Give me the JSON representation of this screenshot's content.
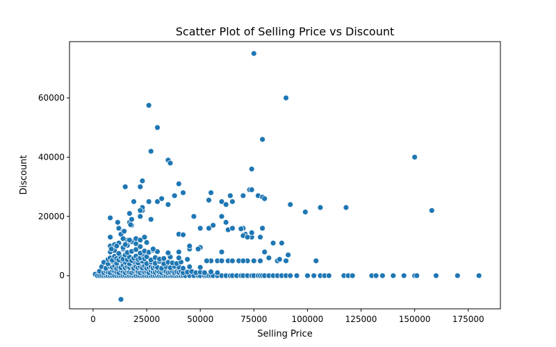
{
  "chart_data": {
    "type": "scatter",
    "title": "Scatter Plot of Selling Price vs Discount",
    "xlabel": "Selling Price",
    "ylabel": "Discount",
    "xlim": [
      -11000,
      190000
    ],
    "ylim": [
      -11200,
      79000
    ],
    "xticks": [
      0,
      25000,
      50000,
      75000,
      100000,
      125000,
      150000,
      175000
    ],
    "xtick_labels": [
      "0",
      "25000",
      "50000",
      "75000",
      "100000",
      "125000",
      "150000",
      "175000"
    ],
    "yticks": [
      0,
      20000,
      40000,
      60000
    ],
    "ytick_labels": [
      "0",
      "20000",
      "40000",
      "60000"
    ],
    "grid": false,
    "marker_color": "#1f77b4",
    "series": [
      {
        "x": [
          1000,
          2000,
          3000,
          4000,
          5000,
          6000,
          7000,
          8000,
          9000,
          10000,
          11000,
          12000,
          13000,
          14000,
          15000,
          16000,
          17000,
          18000,
          19000,
          20000,
          21000,
          22000,
          23000,
          24000,
          25000,
          26000,
          27000,
          28000,
          29000,
          30000,
          31000,
          32000,
          33000,
          34000,
          35000,
          36000,
          37000,
          38000,
          39000,
          40000,
          41000,
          42000,
          43000,
          45000,
          47000,
          49000,
          50000,
          52000,
          53000,
          54000,
          55000,
          56000,
          58000,
          60000,
          62000,
          64000,
          65000,
          67000,
          69000,
          70000,
          72000,
          74000,
          75000,
          77000,
          78000,
          79000,
          80000,
          82000,
          84000,
          86000,
          88000,
          90000,
          92000,
          95000,
          100000,
          103000,
          106000,
          108000,
          110000,
          117000,
          119000,
          121000,
          130000,
          132000,
          135000,
          140000,
          145000,
          150000,
          151000,
          160000,
          170000,
          180000,
          3000,
          5000,
          6000,
          7000,
          8000,
          9000,
          10000,
          11000,
          12000,
          13000,
          14000,
          15000,
          16000,
          17000,
          18000,
          19000,
          20000,
          21000,
          22000,
          23000,
          24000,
          25000,
          26000,
          27000,
          28000,
          29000,
          30000,
          31000,
          32000,
          33000,
          34000,
          35000,
          36000,
          37000,
          38000,
          39000,
          40000,
          41000,
          42000,
          44000,
          46000,
          48000,
          50000,
          52000,
          55000,
          58000,
          4000,
          6000,
          8000,
          9000,
          10000,
          11000,
          12000,
          13000,
          14000,
          15000,
          16000,
          17000,
          18000,
          19000,
          20000,
          21000,
          22000,
          23000,
          24000,
          25000,
          26000,
          27000,
          28000,
          29000,
          30000,
          32000,
          34000,
          36000,
          38000,
          40000,
          42000,
          45000,
          50000,
          5000,
          7000,
          9000,
          11000,
          13000,
          15000,
          17000,
          19000,
          21000,
          23000,
          25000,
          27000,
          29000,
          31000,
          33000,
          35000,
          37000,
          39000,
          41000,
          7000,
          8000,
          9000,
          10000,
          11000,
          12000,
          13000,
          14000,
          15000,
          16000,
          17000,
          18000,
          19000,
          20000,
          21000,
          22000,
          23000,
          24000,
          25000,
          27000,
          29000,
          31000,
          33000,
          36000,
          40000,
          44000,
          8000,
          10000,
          12000,
          14000,
          16000,
          18000,
          20000,
          22000,
          24000,
          26000,
          28000,
          30000,
          35000,
          40000,
          45000,
          50000,
          55000,
          60000,
          8000,
          10000,
          12000,
          14000,
          16000,
          18000,
          20000,
          22000,
          25000,
          8000,
          8500,
          11000,
          12000,
          14000,
          17000,
          18000,
          22000,
          53000,
          58000,
          63000,
          68000,
          72000,
          60000,
          65000,
          70000,
          75000,
          78000,
          82000,
          86000,
          90000,
          54000,
          56000,
          60000,
          62000,
          65000,
          70000,
          71000,
          74000,
          79000,
          88000,
          104000,
          13000,
          8000,
          11500,
          13000,
          14500,
          16000,
          17000,
          17500,
          20000,
          22000,
          24000,
          28000,
          40000,
          42000,
          15000,
          19000,
          23000,
          35000,
          22000,
          45000,
          49000,
          50000,
          54000,
          18000,
          22000,
          23000,
          26000,
          27000,
          30000,
          32000,
          35000,
          38000,
          42000,
          47000,
          55000,
          60000,
          62000,
          64000,
          65000,
          70000,
          73000,
          74000,
          77000,
          79000,
          80000,
          84000,
          88000,
          92000,
          99000,
          70000,
          72000,
          80000,
          63000,
          65000,
          69000,
          74000,
          74000,
          78000,
          79000,
          90000,
          75000,
          27000,
          26000,
          30000,
          35000,
          36000,
          40000,
          22000,
          23000,
          22000,
          14000,
          17000,
          15000,
          118000,
          106000,
          150000,
          158000,
          91000,
          87000
        ],
        "y": [
          500,
          0,
          0,
          0,
          0,
          0,
          0,
          0,
          0,
          0,
          0,
          0,
          0,
          0,
          0,
          0,
          0,
          0,
          0,
          0,
          0,
          0,
          0,
          0,
          0,
          0,
          0,
          0,
          0,
          0,
          0,
          0,
          0,
          0,
          0,
          0,
          0,
          0,
          0,
          0,
          0,
          0,
          0,
          0,
          0,
          0,
          0,
          0,
          0,
          0,
          0,
          0,
          0,
          0,
          0,
          0,
          0,
          0,
          0,
          0,
          0,
          0,
          0,
          0,
          0,
          0,
          0,
          0,
          0,
          0,
          0,
          0,
          0,
          0,
          0,
          0,
          0,
          0,
          0,
          0,
          0,
          0,
          0,
          0,
          0,
          0,
          0,
          0,
          0,
          0,
          0,
          0,
          1500,
          1000,
          1500,
          1200,
          1000,
          1800,
          1500,
          1200,
          1000,
          1800,
          1400,
          1000,
          1600,
          1200,
          1000,
          1500,
          1800,
          1300,
          1000,
          1600,
          1200,
          1400,
          1000,
          1700,
          1300,
          1100,
          1500,
          1200,
          1000,
          1600,
          1400,
          1000,
          1200,
          1500,
          1000,
          1300,
          1100,
          1500,
          1000,
          1200,
          1400,
          1000,
          1200,
          1000,
          1300,
          1000,
          3000,
          2500,
          3000,
          2800,
          3200,
          2500,
          3000,
          2700,
          3500,
          2600,
          3000,
          2800,
          3400,
          2500,
          3100,
          2700,
          3000,
          2600,
          3300,
          2500,
          2900,
          3200,
          2600,
          3000,
          2800,
          2500,
          3000,
          2700,
          3100,
          2900,
          2500,
          3000,
          2800,
          4500,
          4000,
          4800,
          4200,
          5000,
          4500,
          4000,
          4700,
          4300,
          4900,
          4100,
          4600,
          4200,
          4800,
          4000,
          4500,
          4300,
          4100,
          4600,
          5500,
          6000,
          5200,
          6500,
          5800,
          5300,
          6200,
          5600,
          7000,
          5400,
          6300,
          5100,
          5900,
          6600,
          5500,
          6000,
          7200,
          5700,
          6400,
          5300,
          6100,
          5600,
          5800,
          6300,
          6000,
          5500,
          8000,
          8500,
          7500,
          9000,
          7800,
          8200,
          8800,
          7600,
          8300,
          7900,
          8600,
          8100,
          7700,
          8000,
          9000,
          9500,
          5000,
          8000,
          10000,
          10500,
          11000,
          9500,
          10200,
          11500,
          10800,
          9800,
          11200,
          13000,
          9000,
          10000,
          16000,
          15000,
          18000,
          17000,
          20000,
          5000,
          5000,
          5000,
          5000,
          5000,
          5000,
          5000,
          5000,
          5000,
          5000,
          6000,
          5000,
          5000,
          16000,
          17000,
          20000,
          18000,
          16000,
          16000,
          14000,
          13000,
          16000,
          11000,
          5000,
          -8000,
          19500,
          18000,
          14000,
          15000,
          12000,
          21000,
          17200,
          12500,
          11800,
          13000,
          9000,
          14000,
          13800,
          30000,
          25000,
          22000,
          24000,
          30000,
          10000,
          9000,
          16000,
          25500,
          19000,
          12000,
          23000,
          25000,
          19000,
          25000,
          26000,
          24000,
          27000,
          28000,
          20000,
          28000,
          25000,
          24000,
          27000,
          25000,
          27000,
          29000,
          29000,
          27000,
          26500,
          26000,
          11000,
          11000,
          24000,
          21500,
          13500,
          13000,
          8000,
          15500,
          16000,
          15800,
          14500,
          36000,
          13000,
          46000,
          60000,
          75000,
          42000,
          57500,
          50000,
          39000,
          38000,
          31000,
          30000,
          32000,
          22000,
          12500,
          12000,
          10500,
          23000,
          23000,
          40000,
          22000,
          7000,
          5500
        ]
      }
    ]
  }
}
